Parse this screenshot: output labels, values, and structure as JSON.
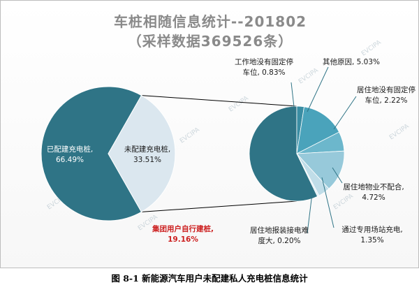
{
  "title_line1": "车桩相随信息统计--201802",
  "title_line2": "（采样数据369526条）",
  "caption": "图 8-1 新能源汽车用户未配建私人充电桩信息统计",
  "watermark": "EVCIPA",
  "colors": {
    "dark_teal": "#2f7486",
    "light_slice": "#dbe7ef",
    "connector": "#000000",
    "highlight_label": "#cc1f1f",
    "label_text": "#1a1a1a"
  },
  "chart_data": [
    {
      "type": "pie",
      "name": "main",
      "slices": [
        {
          "label": "已配建充电桩",
          "value": 66.49,
          "value_text": "66.49%",
          "color": "#2f7486",
          "label_color": "#ffffff"
        },
        {
          "label": "未配建充电桩",
          "value": 33.51,
          "value_text": "33.51%",
          "color": "#dbe7ef",
          "label_color": "#1a1a1a"
        }
      ]
    },
    {
      "type": "pie",
      "name": "breakdown-of-未配建充电桩",
      "slices": [
        {
          "label": "集团用户自行建桩",
          "value": 19.16,
          "value_text": "19.16%",
          "color": "#2f7486",
          "highlight": true
        },
        {
          "label": "工作地没有固定停车位",
          "value": 0.83,
          "value_text": "0.83%",
          "color": "#3a8da3"
        },
        {
          "label": "其他原因",
          "value": 5.03,
          "value_text": "5.03%",
          "color": "#4aa3bb"
        },
        {
          "label": "居住地没有固定停车位",
          "value": 2.22,
          "value_text": "2.22%",
          "color": "#6cb7cc"
        },
        {
          "label": "居住地物业不配合",
          "value": 4.72,
          "value_text": "4.72%",
          "color": "#97c9da"
        },
        {
          "label": "通过专用场站充电",
          "value": 1.35,
          "value_text": "1.35%",
          "color": "#c0dde8"
        },
        {
          "label": "居住地报装接电难度大",
          "value": 0.2,
          "value_text": "0.20%",
          "color": "#dfeef4"
        }
      ]
    }
  ]
}
